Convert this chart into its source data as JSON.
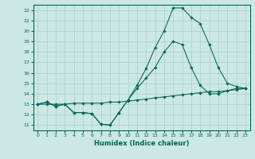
{
  "xlabel": "Humidex (Indice chaleur)",
  "bg_color": "#cce8e4",
  "grid_color": "#aad4cc",
  "line_color": "#006655",
  "xlim": [
    -0.5,
    23.5
  ],
  "ylim": [
    10.5,
    22.5
  ],
  "xticks": [
    0,
    1,
    2,
    3,
    4,
    5,
    6,
    7,
    8,
    9,
    10,
    11,
    12,
    13,
    14,
    15,
    16,
    17,
    18,
    19,
    20,
    21,
    22,
    23
  ],
  "yticks": [
    11,
    12,
    13,
    14,
    15,
    16,
    17,
    18,
    19,
    20,
    21,
    22
  ],
  "line1_x": [
    0,
    1,
    2,
    3,
    4,
    5,
    6,
    7,
    8,
    9,
    10,
    11,
    12,
    13,
    14,
    15,
    16,
    17,
    18,
    19,
    20,
    21,
    22,
    23
  ],
  "line1_y": [
    13.0,
    13.2,
    12.8,
    13.0,
    12.2,
    12.2,
    12.1,
    11.1,
    11.0,
    12.2,
    13.4,
    14.8,
    16.4,
    18.4,
    20.0,
    22.2,
    22.2,
    21.3,
    20.7,
    18.7,
    16.5,
    15.0,
    14.7,
    14.5
  ],
  "line2_x": [
    0,
    1,
    2,
    3,
    4,
    5,
    6,
    7,
    8,
    9,
    10,
    11,
    12,
    13,
    14,
    15,
    16,
    17,
    18,
    19,
    20,
    21,
    22,
    23
  ],
  "line2_y": [
    13.0,
    13.2,
    12.8,
    13.0,
    12.2,
    12.2,
    12.1,
    11.1,
    11.0,
    12.2,
    13.4,
    14.5,
    15.5,
    16.5,
    18.0,
    19.0,
    18.7,
    16.5,
    14.8,
    14.0,
    14.0,
    14.3,
    14.5,
    14.5
  ],
  "line3_x": [
    0,
    1,
    2,
    3,
    4,
    5,
    6,
    7,
    8,
    9,
    10,
    11,
    12,
    13,
    14,
    15,
    16,
    17,
    18,
    19,
    20,
    21,
    22,
    23
  ],
  "line3_y": [
    13.0,
    13.0,
    13.0,
    13.0,
    13.1,
    13.1,
    13.1,
    13.1,
    13.2,
    13.2,
    13.3,
    13.4,
    13.5,
    13.6,
    13.7,
    13.8,
    13.9,
    14.0,
    14.1,
    14.2,
    14.2,
    14.3,
    14.4,
    14.5
  ]
}
